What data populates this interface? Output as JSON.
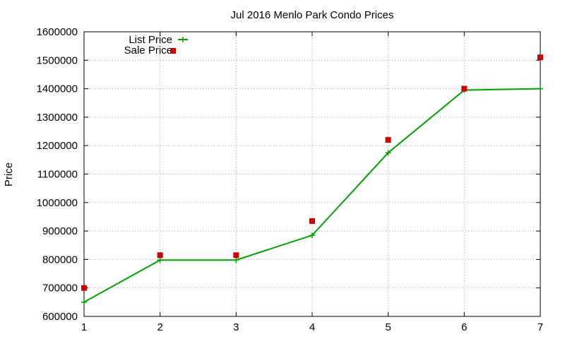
{
  "chart_data": {
    "type": "line",
    "title": "Jul 2016 Menlo Park Condo Prices",
    "xlabel": "",
    "ylabel": "Price",
    "x": [
      1,
      2,
      3,
      4,
      5,
      6,
      7
    ],
    "xlim": [
      1,
      7
    ],
    "ylim": [
      600000,
      1600000
    ],
    "yticks": [
      600000,
      700000,
      800000,
      900000,
      1000000,
      1100000,
      1200000,
      1300000,
      1400000,
      1500000,
      1600000
    ],
    "grid": true,
    "legend_position": "top-left",
    "series": [
      {
        "name": "List Price",
        "style": "line+points",
        "color": "#00a000",
        "values": [
          650000,
          798000,
          798000,
          885000,
          1175000,
          1395000,
          1400000
        ]
      },
      {
        "name": "Sale Price",
        "style": "points",
        "color": "#cc0000",
        "values": [
          700000,
          815000,
          815000,
          935000,
          1220000,
          1400000,
          1510000
        ]
      }
    ]
  }
}
